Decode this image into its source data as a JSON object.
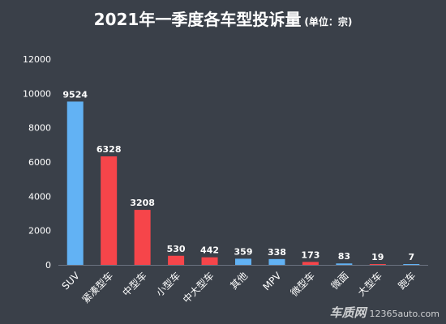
{
  "title": "2021年一季度各车型投诉量",
  "unit_note": "(单位：宗)",
  "watermark": {
    "brand": "车质网",
    "site": "12365auto.com"
  },
  "colors": {
    "blue": "#62b2f4",
    "red": "#f6454a",
    "background": "#3a4049",
    "text": "#ffffff"
  },
  "chart_data": {
    "type": "bar",
    "title": "2021年一季度各车型投诉量",
    "subtitle": "(单位：宗)",
    "xlabel": "",
    "ylabel": "",
    "ylim": [
      0,
      12000
    ],
    "yticks": [
      0,
      2000,
      4000,
      6000,
      8000,
      10000,
      12000
    ],
    "grid": false,
    "legend": "none",
    "categories": [
      "SUV",
      "紧凑型车",
      "中型车",
      "小型车",
      "中大型车",
      "其他",
      "MPV",
      "微型车",
      "微面",
      "大型车",
      "跑车"
    ],
    "values": [
      9524,
      6328,
      3208,
      530,
      442,
      359,
      338,
      173,
      83,
      19,
      7
    ],
    "bar_colors": [
      "blue",
      "red",
      "red",
      "red",
      "red",
      "blue",
      "blue",
      "red",
      "blue",
      "red",
      "blue"
    ]
  }
}
